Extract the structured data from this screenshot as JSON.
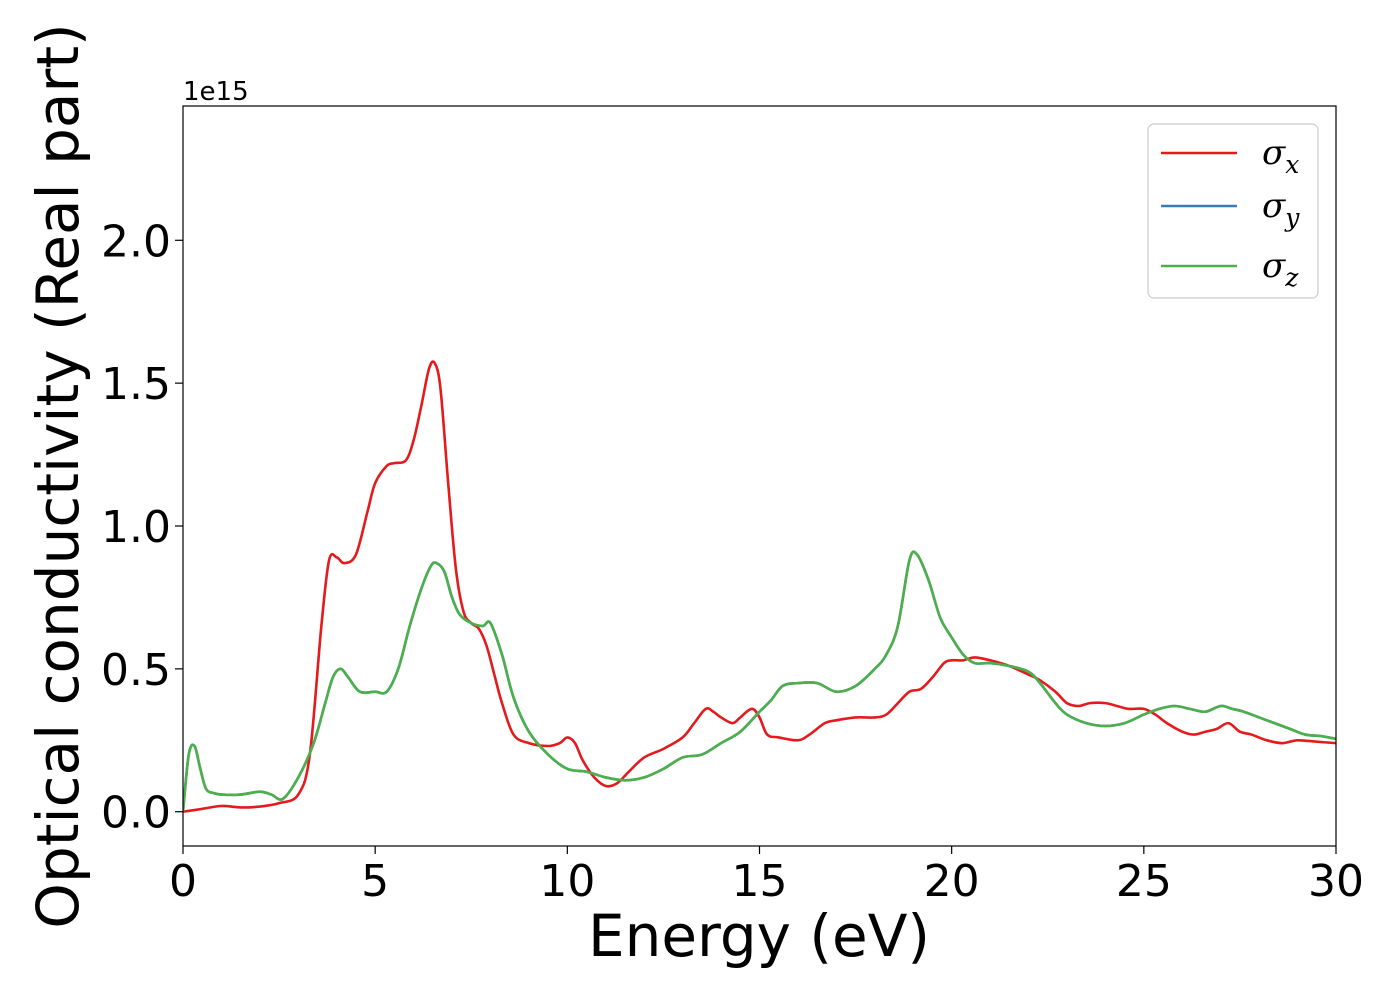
{
  "chart_data": {
    "type": "line",
    "xlabel": "Energy (eV)",
    "ylabel": "Optical conductivity (Real part)",
    "y_offset_text": "1e15",
    "y_scale": 1000000000000000.0,
    "xlim": [
      0,
      30
    ],
    "ylim": [
      -0.12,
      2.47
    ],
    "x_ticks": [
      0,
      5,
      10,
      15,
      20,
      25,
      30
    ],
    "x_tick_labels": [
      "0",
      "5",
      "10",
      "15",
      "20",
      "25",
      "30"
    ],
    "y_ticks": [
      0,
      0.5,
      1.0,
      1.5,
      2.0
    ],
    "y_tick_labels": [
      "0.0",
      "0.5",
      "1.0",
      "1.5",
      "2.0"
    ],
    "grid": false,
    "legend_position": "top-right",
    "series": [
      {
        "name": "x",
        "legend_symbol": "σ",
        "legend_subscript": "x",
        "color": "#e41a1c",
        "x": [
          0,
          0.5,
          1,
          1.5,
          2,
          2.5,
          3,
          3.3,
          3.6,
          3.8,
          4,
          4.2,
          4.5,
          4.8,
          5,
          5.3,
          5.5,
          5.8,
          6,
          6.2,
          6.4,
          6.55,
          6.7,
          6.9,
          7.1,
          7.3,
          7.5,
          7.7,
          7.9,
          8.1,
          8.3,
          8.6,
          9,
          9.5,
          9.8,
          10,
          10.2,
          10.4,
          10.7,
          11,
          11.3,
          11.6,
          12,
          12.5,
          13,
          13.3,
          13.6,
          13.8,
          14,
          14.3,
          14.5,
          14.8,
          15,
          15.2,
          15.5,
          16,
          16.3,
          16.7,
          17,
          17.5,
          18,
          18.3,
          18.6,
          18.9,
          19.2,
          19.5,
          19.8,
          20,
          20.3,
          20.6,
          21,
          21.5,
          22,
          22.3,
          22.7,
          23,
          23.3,
          23.6,
          24,
          24.3,
          24.6,
          25,
          25.3,
          25.6,
          26,
          26.3,
          26.6,
          26.9,
          27.2,
          27.5,
          27.8,
          28.2,
          28.6,
          29,
          29.5,
          30
        ],
        "y": [
          0,
          0.01,
          0.02,
          0.015,
          0.018,
          0.03,
          0.06,
          0.2,
          0.65,
          0.88,
          0.89,
          0.87,
          0.9,
          1.05,
          1.15,
          1.21,
          1.22,
          1.23,
          1.3,
          1.42,
          1.55,
          1.57,
          1.48,
          1.15,
          0.85,
          0.7,
          0.66,
          0.64,
          0.58,
          0.48,
          0.38,
          0.27,
          0.24,
          0.23,
          0.24,
          0.26,
          0.24,
          0.18,
          0.12,
          0.09,
          0.1,
          0.14,
          0.19,
          0.22,
          0.26,
          0.31,
          0.36,
          0.35,
          0.33,
          0.31,
          0.33,
          0.36,
          0.33,
          0.27,
          0.26,
          0.25,
          0.27,
          0.31,
          0.32,
          0.33,
          0.33,
          0.34,
          0.38,
          0.42,
          0.43,
          0.47,
          0.52,
          0.53,
          0.53,
          0.54,
          0.53,
          0.51,
          0.48,
          0.46,
          0.42,
          0.38,
          0.37,
          0.38,
          0.38,
          0.37,
          0.36,
          0.36,
          0.34,
          0.31,
          0.28,
          0.27,
          0.28,
          0.29,
          0.31,
          0.28,
          0.27,
          0.25,
          0.24,
          0.25,
          0.245,
          0.24
        ]
      },
      {
        "name": "y",
        "legend_symbol": "σ",
        "legend_subscript": "y",
        "color": "#377eb8",
        "x": [
          0,
          0.15,
          0.3,
          0.45,
          0.6,
          0.8,
          1,
          1.5,
          2,
          2.3,
          2.6,
          3,
          3.4,
          3.7,
          3.9,
          4.1,
          4.3,
          4.6,
          5,
          5.3,
          5.6,
          5.9,
          6.2,
          6.45,
          6.6,
          6.8,
          7,
          7.2,
          7.5,
          7.8,
          8,
          8.3,
          8.6,
          9,
          9.5,
          10,
          10.5,
          11,
          11.5,
          12,
          12.5,
          13,
          13.5,
          14,
          14.5,
          15,
          15.3,
          15.6,
          16,
          16.5,
          17,
          17.5,
          18,
          18.3,
          18.6,
          18.9,
          19.1,
          19.4,
          19.7,
          20,
          20.3,
          20.6,
          21,
          21.5,
          22,
          22.3,
          22.7,
          23,
          23.5,
          24,
          24.5,
          25,
          25.4,
          25.8,
          26.2,
          26.6,
          27,
          27.3,
          27.6,
          28,
          28.4,
          28.8,
          29.2,
          29.6,
          30
        ],
        "y": [
          0,
          0.2,
          0.23,
          0.15,
          0.08,
          0.065,
          0.06,
          0.06,
          0.07,
          0.06,
          0.045,
          0.12,
          0.24,
          0.38,
          0.47,
          0.5,
          0.47,
          0.42,
          0.42,
          0.42,
          0.5,
          0.65,
          0.78,
          0.86,
          0.87,
          0.84,
          0.75,
          0.69,
          0.66,
          0.65,
          0.66,
          0.55,
          0.4,
          0.28,
          0.2,
          0.15,
          0.14,
          0.12,
          0.11,
          0.12,
          0.15,
          0.19,
          0.2,
          0.24,
          0.28,
          0.35,
          0.39,
          0.44,
          0.45,
          0.45,
          0.42,
          0.44,
          0.5,
          0.55,
          0.65,
          0.88,
          0.9,
          0.81,
          0.68,
          0.61,
          0.55,
          0.52,
          0.52,
          0.51,
          0.49,
          0.45,
          0.38,
          0.34,
          0.31,
          0.3,
          0.31,
          0.34,
          0.36,
          0.37,
          0.36,
          0.35,
          0.37,
          0.36,
          0.35,
          0.33,
          0.31,
          0.29,
          0.27,
          0.265,
          0.255
        ]
      },
      {
        "name": "z",
        "legend_symbol": "σ",
        "legend_subscript": "z",
        "color": "#4daf4a",
        "x": [
          0,
          0.15,
          0.3,
          0.45,
          0.6,
          0.8,
          1,
          1.5,
          2,
          2.3,
          2.6,
          3,
          3.4,
          3.7,
          3.9,
          4.1,
          4.3,
          4.6,
          5,
          5.3,
          5.6,
          5.9,
          6.2,
          6.45,
          6.6,
          6.8,
          7,
          7.2,
          7.5,
          7.8,
          8,
          8.3,
          8.6,
          9,
          9.5,
          10,
          10.5,
          11,
          11.5,
          12,
          12.5,
          13,
          13.5,
          14,
          14.5,
          15,
          15.3,
          15.6,
          16,
          16.5,
          17,
          17.5,
          18,
          18.3,
          18.6,
          18.9,
          19.1,
          19.4,
          19.7,
          20,
          20.3,
          20.6,
          21,
          21.5,
          22,
          22.3,
          22.7,
          23,
          23.5,
          24,
          24.5,
          25,
          25.4,
          25.8,
          26.2,
          26.6,
          27,
          27.3,
          27.6,
          28,
          28.4,
          28.8,
          29.2,
          29.6,
          30
        ],
        "y": [
          0,
          0.2,
          0.23,
          0.15,
          0.08,
          0.065,
          0.06,
          0.06,
          0.07,
          0.06,
          0.045,
          0.12,
          0.24,
          0.38,
          0.47,
          0.5,
          0.47,
          0.42,
          0.42,
          0.42,
          0.5,
          0.65,
          0.78,
          0.86,
          0.87,
          0.84,
          0.75,
          0.69,
          0.66,
          0.65,
          0.66,
          0.55,
          0.4,
          0.28,
          0.2,
          0.15,
          0.14,
          0.12,
          0.11,
          0.12,
          0.15,
          0.19,
          0.2,
          0.24,
          0.28,
          0.35,
          0.39,
          0.44,
          0.45,
          0.45,
          0.42,
          0.44,
          0.5,
          0.55,
          0.65,
          0.88,
          0.9,
          0.81,
          0.68,
          0.61,
          0.55,
          0.52,
          0.52,
          0.51,
          0.49,
          0.45,
          0.38,
          0.34,
          0.31,
          0.3,
          0.31,
          0.34,
          0.36,
          0.37,
          0.36,
          0.35,
          0.37,
          0.36,
          0.35,
          0.33,
          0.31,
          0.29,
          0.27,
          0.265,
          0.255
        ]
      }
    ]
  }
}
